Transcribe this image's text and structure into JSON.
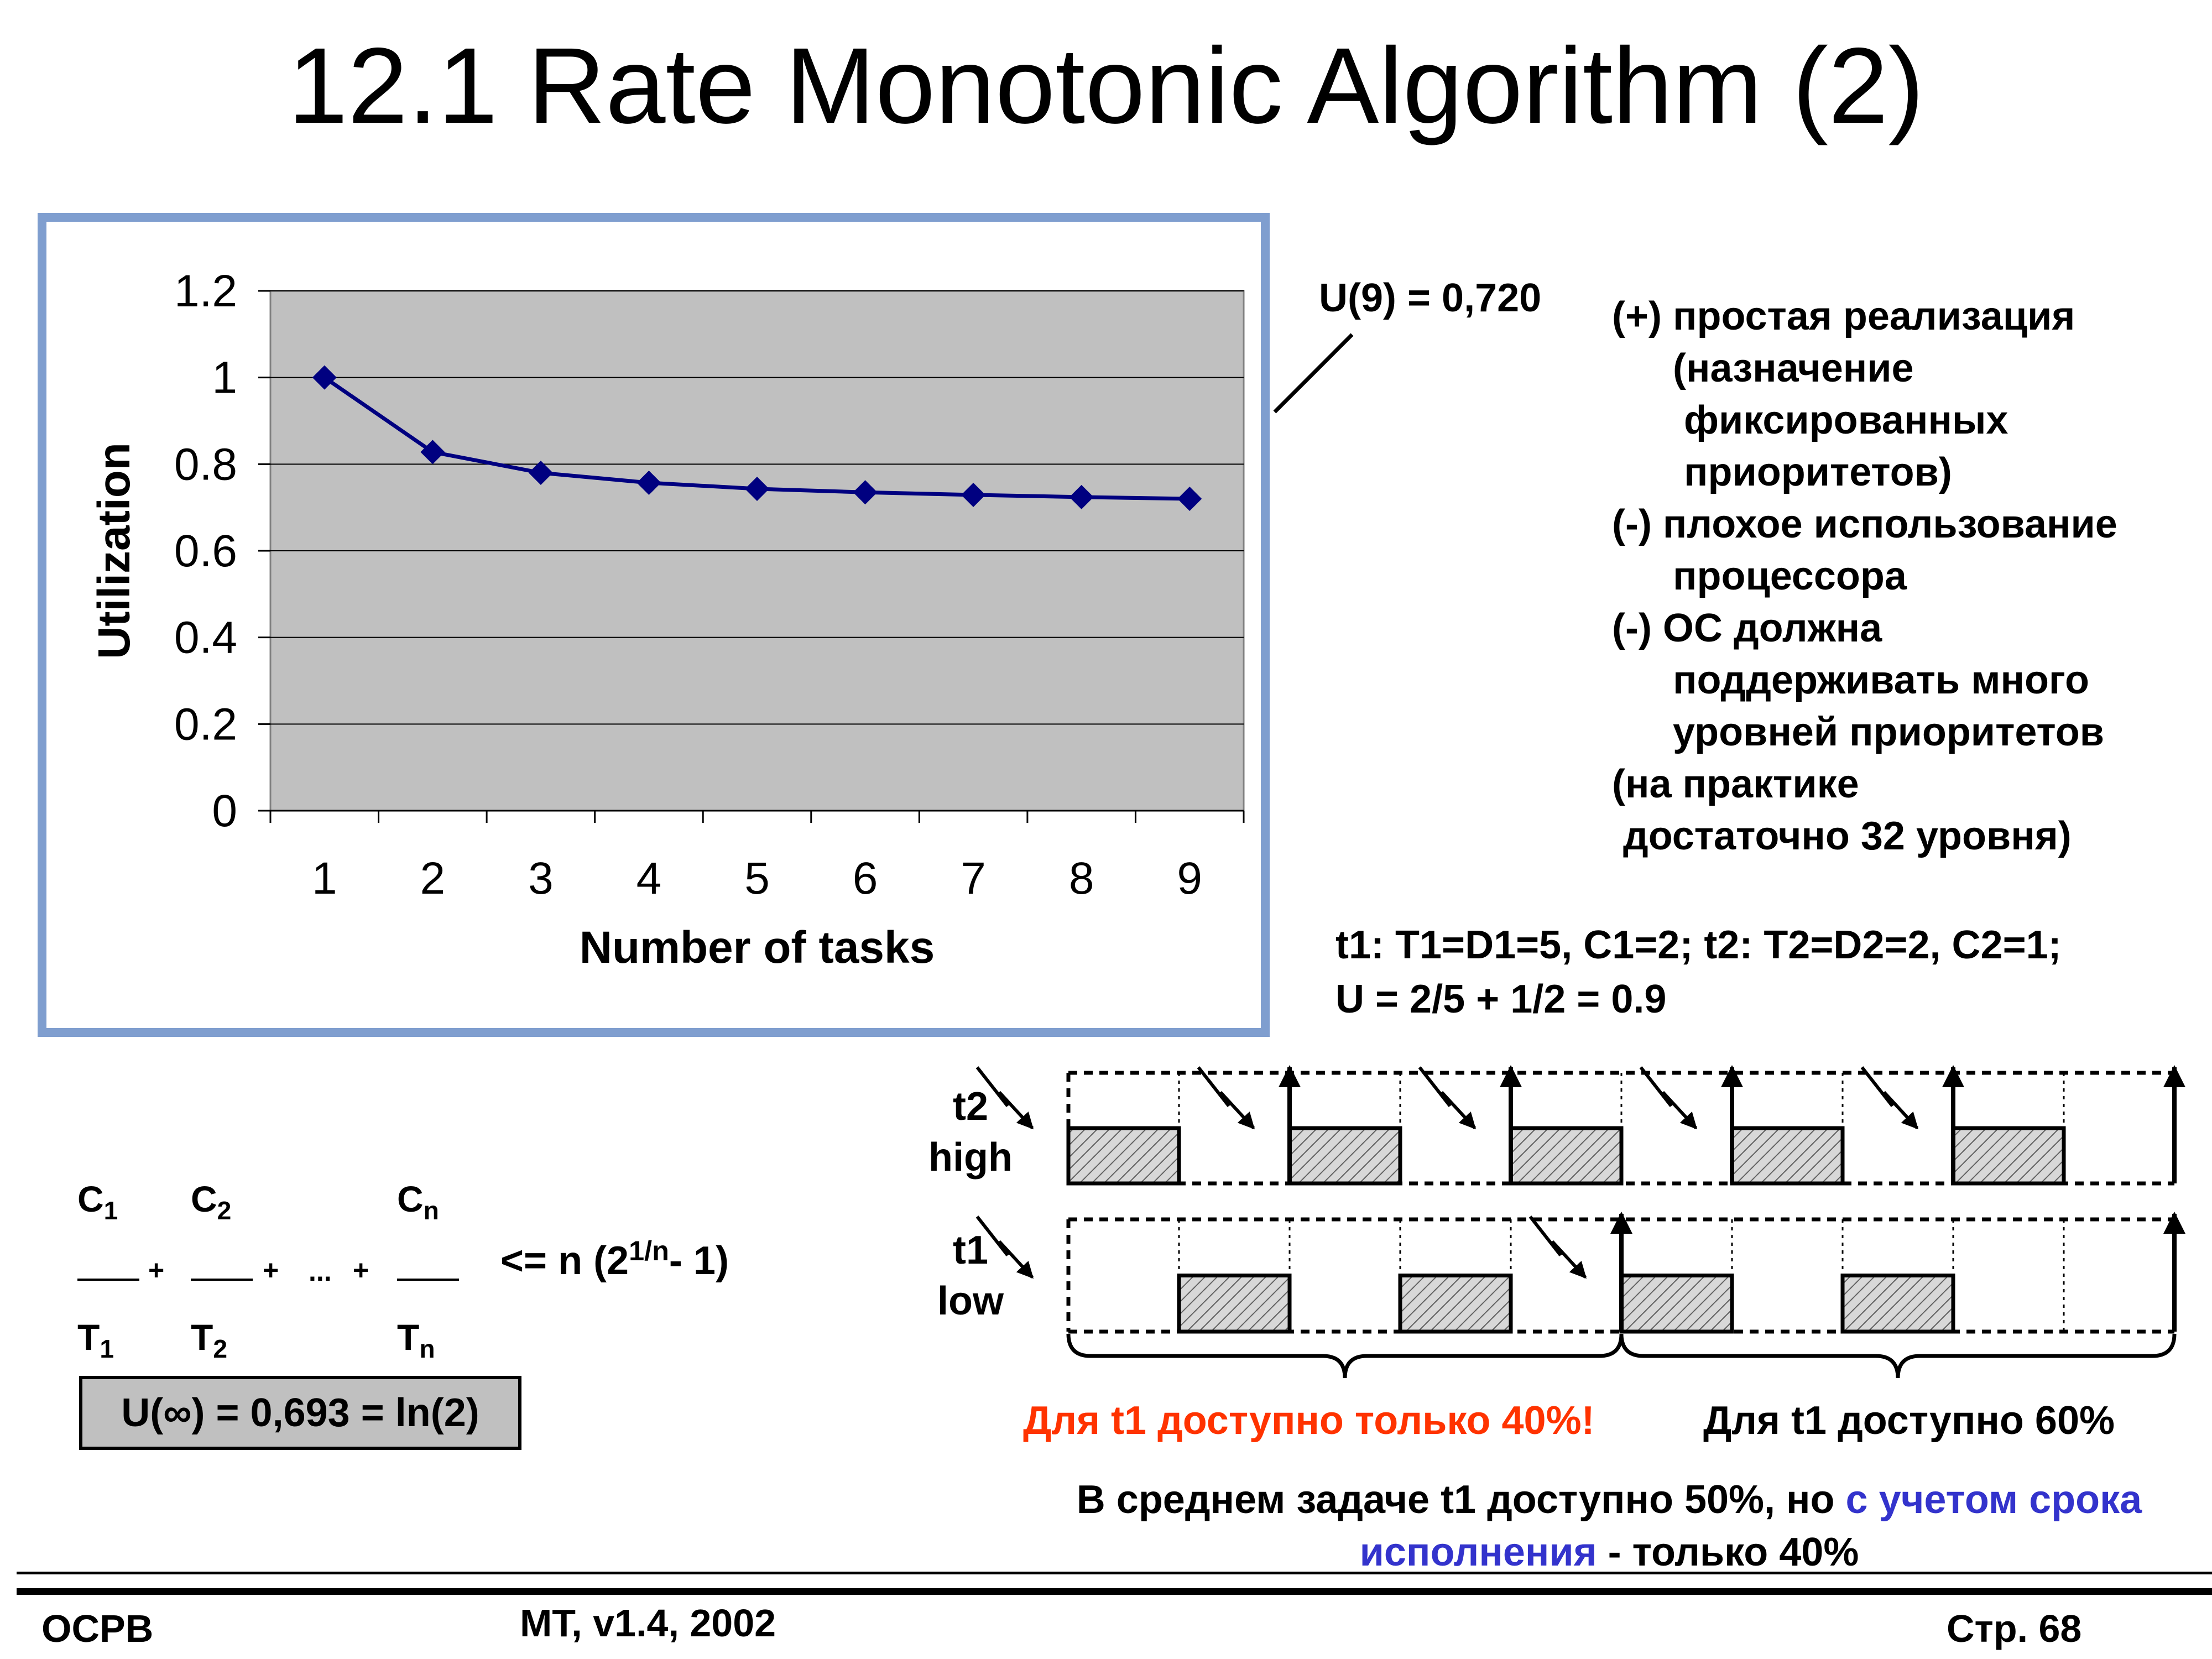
{
  "title": "12.1 Rate Monotonic Algorithm (2)",
  "chart_data": {
    "type": "line",
    "categories": [
      "1",
      "2",
      "3",
      "4",
      "5",
      "6",
      "7",
      "8",
      "9"
    ],
    "series": [
      {
        "values": [
          1.0,
          0.828,
          0.78,
          0.757,
          0.743,
          0.735,
          0.729,
          0.724,
          0.72
        ]
      }
    ],
    "xlabel": "Number of tasks",
    "ylabel": "Utilization",
    "yticks": [
      "0",
      "0.2",
      "0.4",
      "0.6",
      "0.8",
      "1",
      "1.2"
    ],
    "ylim": [
      0,
      1.2
    ],
    "grid": true,
    "legend": "none",
    "plot_color": "#c0c0c0",
    "line_color": "#000080",
    "frame_color": "#7f9ecf"
  },
  "annotation": {
    "u9": "U(9) = 0,720"
  },
  "pros_cons": [
    "(+) простая реализация",
    "(назначение",
    "фиксированных",
    "приоритетов)",
    "(-) плохое использование",
    "процессора",
    "(-) ОС должна",
    "поддерживать много",
    "уровней приоритетов",
    "(на практике",
    "достаточно 32 уровня)"
  ],
  "params": {
    "line1": "t1: T1=D1=5, C1=2;  t2: T2=D2=2, C2=1;",
    "line2": "U = 2/5 + 1/2 = 0.9"
  },
  "timeline": {
    "t2_name": "t2",
    "t2_prio": "high",
    "t1_name": "t1",
    "t1_prio": "low",
    "t2_exec_slots": [
      0,
      2,
      4,
      6,
      8
    ],
    "t1_exec_slots": [
      1,
      3,
      5,
      7
    ],
    "total_slots": 10,
    "hatch_color": "#d8d8d8"
  },
  "formula": {
    "c1": "C",
    "c1_sub": "1",
    "c2": "C",
    "c2_sub": "2",
    "cn": "C",
    "cn_sub": "n",
    "t1": "T",
    "t1_sub": "1",
    "t2": "T",
    "t2_sub": "2",
    "tn": "T",
    "tn_sub": "n",
    "plus": "+",
    "dots": "...",
    "bound_pre": "<= n (2",
    "bound_sup": "1/n",
    "bound_post": "- 1)",
    "u_inf": "U(∞) = 0,693 = ln(2)"
  },
  "notes": {
    "red": "Для t1 доступно только 40%!",
    "sixty": "Для t1 доступно 60%",
    "summary_a": "В среднем задаче t1 доступно 50%, но ",
    "summary_b": "с учетом срока исполнения",
    "summary_c": " - только 40%"
  },
  "footer": {
    "left": "ОСРВ",
    "mid": "MT, v1.4, 2002",
    "right": "Стр. 68"
  }
}
